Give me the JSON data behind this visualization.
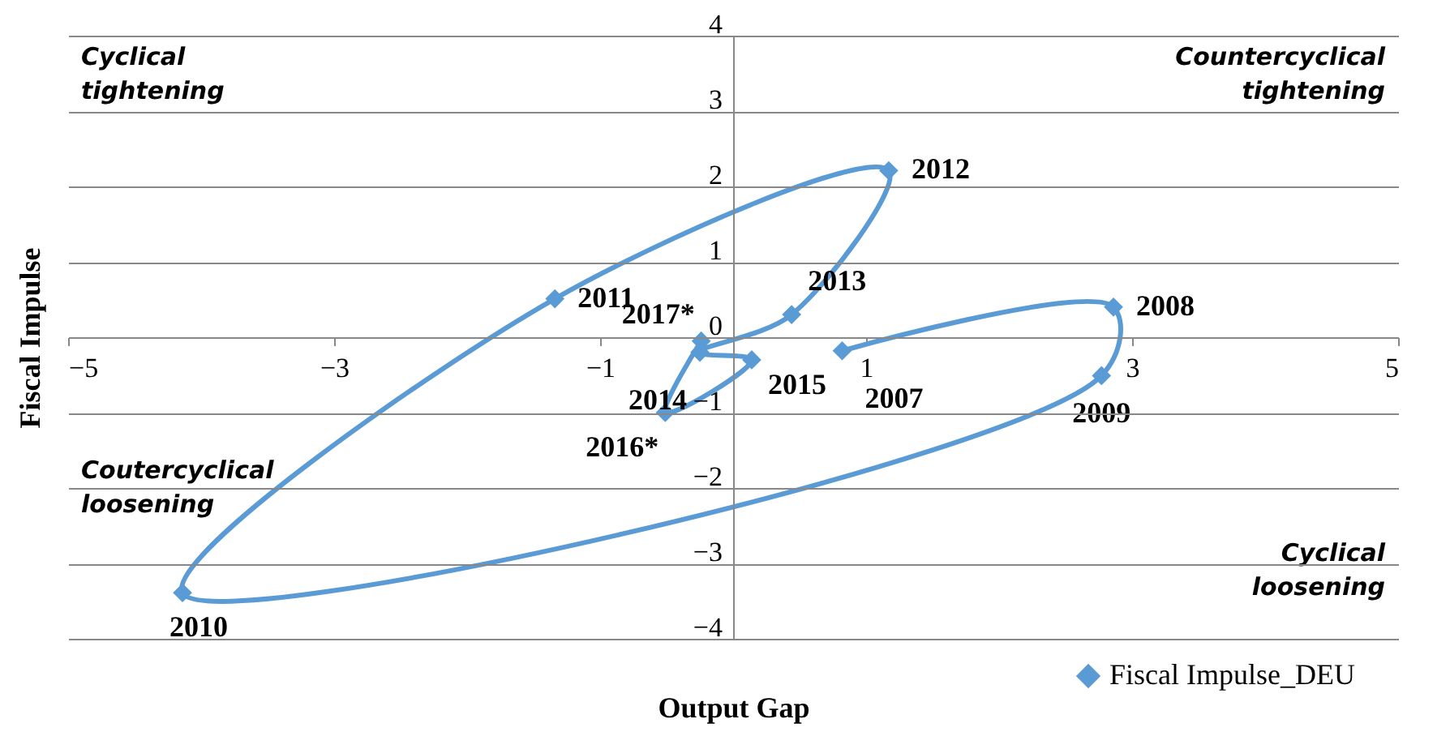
{
  "chart_data": {
    "type": "line",
    "xlabel": "Output Gap",
    "ylabel": "Fiscal Impulse",
    "x": [
      0.82,
      2.86,
      2.77,
      -4.14,
      -1.34,
      1.17,
      0.44,
      -0.25,
      0.14,
      -0.51,
      -0.24
    ],
    "series": [
      {
        "name": "Fiscal Impulse_DEU",
        "color": "#5b9bd5",
        "values": [
          -0.18,
          0.4,
          -0.51,
          -3.39,
          0.51,
          2.21,
          0.3,
          -0.2,
          -0.3,
          -1.0,
          -0.05
        ]
      }
    ],
    "xlim": [
      -5,
      5
    ],
    "xticks": [
      -5,
      -3,
      -1,
      1,
      3,
      5
    ],
    "ylim": [
      -4,
      4
    ],
    "yticks": [
      -4,
      -3,
      -2,
      -1,
      0,
      1,
      2,
      3,
      4
    ],
    "grid": "y",
    "marker": "diamond",
    "legend": "bottom",
    "annotations": [
      {
        "text": "2007",
        "x": 0.82,
        "y": -0.18
      },
      {
        "text": "2008",
        "x": 2.86,
        "y": 0.4
      },
      {
        "text": "2009",
        "x": 2.77,
        "y": -0.51
      },
      {
        "text": "2010",
        "x": -4.14,
        "y": -3.39
      },
      {
        "text": "2011",
        "x": -1.34,
        "y": 0.51
      },
      {
        "text": "2012",
        "x": 1.17,
        "y": 2.21
      },
      {
        "text": "2013",
        "x": 0.44,
        "y": 0.3
      },
      {
        "text": "2014",
        "x": -0.25,
        "y": -0.2
      },
      {
        "text": "2015",
        "x": 0.14,
        "y": -0.3
      },
      {
        "text": "2016*",
        "x": -0.51,
        "y": -1.0
      },
      {
        "text": "2017*",
        "x": -0.24,
        "y": -0.05
      },
      "Cyclical tightening",
      "Countercyclical tightening",
      "Coutercyclical loosening",
      "Cyclical loosening"
    ]
  }
}
